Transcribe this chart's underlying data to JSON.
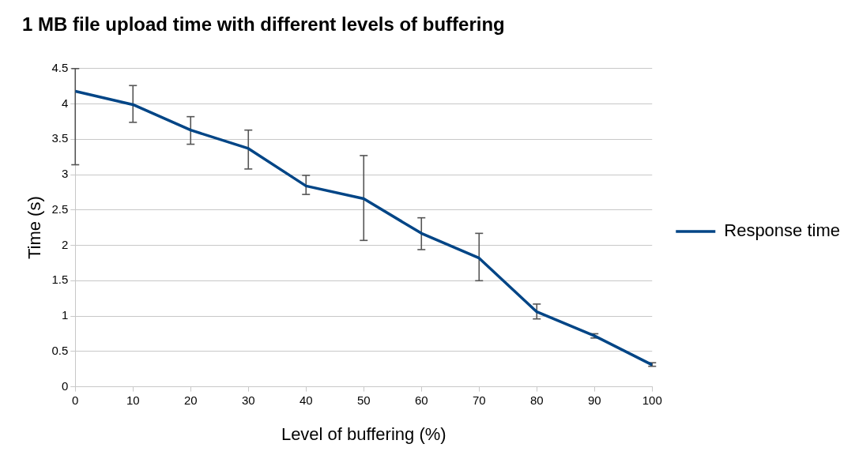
{
  "chart_data": {
    "type": "line",
    "title": "1 MB file upload time with different levels of buffering",
    "xlabel": "Level of buffering (%)",
    "ylabel": "Time (s)",
    "x": [
      0,
      10,
      20,
      30,
      40,
      50,
      60,
      70,
      80,
      90,
      100
    ],
    "series": [
      {
        "name": "Response time",
        "color": "#004586",
        "values": [
          4.18,
          3.99,
          3.63,
          3.37,
          2.84,
          2.66,
          2.17,
          1.82,
          1.06,
          0.72,
          0.31
        ],
        "errors": [
          [
            3.14,
            4.5
          ],
          [
            3.74,
            4.26
          ],
          [
            3.43,
            3.82
          ],
          [
            3.08,
            3.63
          ],
          [
            2.72,
            2.99
          ],
          [
            2.07,
            3.27
          ],
          [
            1.94,
            2.39
          ],
          [
            1.5,
            2.17
          ],
          [
            0.96,
            1.17
          ],
          [
            0.69,
            0.75
          ],
          [
            0.29,
            0.34
          ]
        ]
      }
    ],
    "xlim": [
      0,
      100
    ],
    "xticks": [
      0,
      10,
      20,
      30,
      40,
      50,
      60,
      70,
      80,
      90,
      100
    ],
    "ylim": [
      0,
      4.5
    ],
    "yticks": [
      0,
      0.5,
      1,
      1.5,
      2,
      2.5,
      3,
      3.5,
      4,
      4.5
    ],
    "grid": "y",
    "legend": "right",
    "marker": "none",
    "line_style": "solid"
  }
}
